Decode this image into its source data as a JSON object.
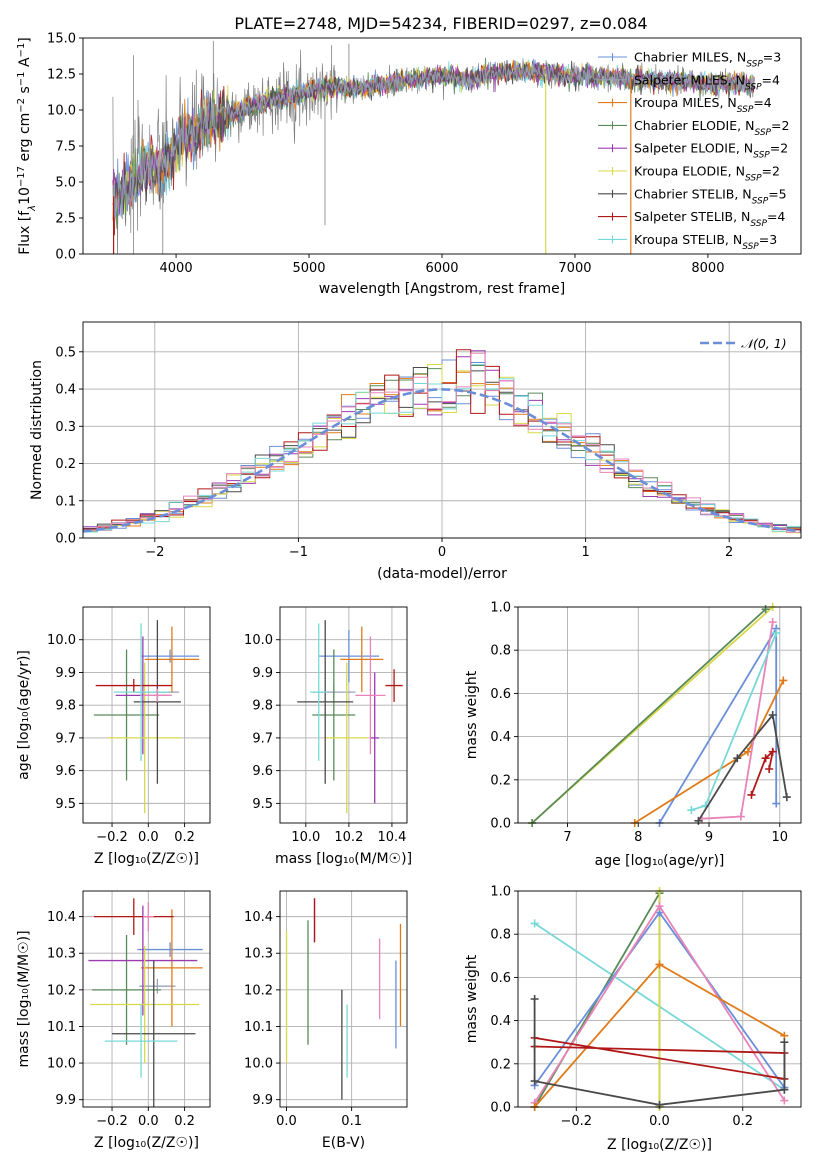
{
  "figure_title": "PLATE=2748, MJD=54234, FIBERID=0297, z=0.084",
  "colors": {
    "Chabrier MILES": "#6a8fd8",
    "Salpeter MILES": "#9aa3b8",
    "Kroupa MILES": "#e07b1a",
    "Chabrier ELODIE": "#5a8a5a",
    "Salpeter ELODIE": "#9b3bb0",
    "Kroupa ELODIE": "#d8d84a",
    "Chabrier STELIB": "#4a4a4a",
    "Salpeter STELIB": "#b01818",
    "Kroupa STELIB": "#78d8d8",
    "normal_curve": "#6a8fd8",
    "pink": "#e884b8",
    "data_gray": "#808080"
  },
  "chart_data": [
    {
      "id": "spectrum",
      "type": "line",
      "title": "PLATE=2748, MJD=54234, FIBERID=0297, z=0.084",
      "xlabel": "wavelength [Angstrom, rest frame]",
      "ylabel_parts": [
        "Flux [f",
        "λ",
        "10",
        "−17",
        " erg cm",
        "−2",
        " s",
        "−1",
        " A",
        "−1",
        "]"
      ],
      "xlim": [
        3300,
        8700
      ],
      "ylim": [
        0,
        15
      ],
      "xticks": [
        4000,
        5000,
        6000,
        7000,
        8000
      ],
      "xtick_labels": [
        "4000",
        "5000",
        "6000",
        "7000",
        "8000"
      ],
      "yticks": [
        0,
        2.5,
        5,
        7.5,
        10,
        12.5,
        15
      ],
      "ytick_labels": [
        "0.0",
        "2.5",
        "5.0",
        "7.5",
        "10.0",
        "12.5",
        "15.0"
      ],
      "legend_position": "upper right",
      "series": [
        {
          "name": "Chabrier MILES, N",
          "sub": "SSP",
          "suffix": "=3"
        },
        {
          "name": "Salpeter MILES, N",
          "sub": "SSP",
          "suffix": "=4"
        },
        {
          "name": "Kroupa MILES, N",
          "sub": "SSP",
          "suffix": "=4"
        },
        {
          "name": "Chabrier ELODIE, N",
          "sub": "SSP",
          "suffix": "=2"
        },
        {
          "name": "Salpeter ELODIE, N",
          "sub": "SSP",
          "suffix": "=2"
        },
        {
          "name": "Kroupa ELODIE, N",
          "sub": "SSP",
          "suffix": "=2"
        },
        {
          "name": "Chabrier STELIB, N",
          "sub": "SSP",
          "suffix": "=5"
        },
        {
          "name": "Salpeter STELIB, N",
          "sub": "SSP",
          "suffix": "=4"
        },
        {
          "name": "Kroupa STELIB, N",
          "sub": "SSP",
          "suffix": "=3"
        }
      ],
      "continuum": {
        "x": [
          3520,
          3650,
          3800,
          3900,
          4000,
          4100,
          4300,
          4500,
          4700,
          5000,
          5200,
          5400,
          5600,
          5800,
          6000,
          6200,
          6400,
          6600,
          6800,
          7000,
          7200,
          7400,
          7600,
          7800,
          8000,
          8200,
          8350
        ],
        "y": [
          3.8,
          4.8,
          6.2,
          6.0,
          7.6,
          8.3,
          9.4,
          10.0,
          10.7,
          11.3,
          11.6,
          11.5,
          11.8,
          12.1,
          12.4,
          12.1,
          12.6,
          12.7,
          12.5,
          12.4,
          12.3,
          12.1,
          12.1,
          12.0,
          11.8,
          11.9,
          11.7
        ]
      }
    },
    {
      "id": "residuals",
      "type": "histogram",
      "xlabel": "(data-model)/error",
      "ylabel": "Normed distribution",
      "xlim": [
        -2.5,
        2.5
      ],
      "ylim": [
        0,
        0.58
      ],
      "xticks": [
        -2,
        -1,
        0,
        1,
        2
      ],
      "xtick_labels": [
        "−2",
        "−1",
        "0",
        "1",
        "2"
      ],
      "yticks": [
        0,
        0.1,
        0.2,
        0.3,
        0.4,
        0.5
      ],
      "ytick_labels": [
        "0.0",
        "0.1",
        "0.2",
        "0.3",
        "0.4",
        "0.5"
      ],
      "bins": [
        -2.5,
        2.5,
        50
      ],
      "legend": {
        "label": "𝒩(0, 1)",
        "position": "upper right"
      },
      "normal_curve": {
        "mean": 0,
        "std": 1
      }
    },
    {
      "id": "age_vs_Z",
      "type": "errorbar",
      "xlabel": "Z [log₁₀(Z/Z☉)]",
      "ylabel": "age  [log₁₀(age/yr)]",
      "xlim": [
        -0.36,
        0.34
      ],
      "ylim": [
        9.44,
        10.1
      ],
      "xticks": [
        -0.2,
        0.0,
        0.2
      ],
      "xtick_labels": [
        "−0.2",
        "0.0",
        "0.2"
      ],
      "yticks": [
        9.5,
        9.6,
        9.7,
        9.8,
        9.9,
        10.0
      ],
      "ytick_labels": [
        "9.5",
        "9.6",
        "9.7",
        "9.8",
        "9.9",
        "10.0"
      ],
      "points": [
        {
          "c": "Chabrier MILES",
          "x": 0.12,
          "xe": 0.16,
          "y": 9.95,
          "ye": 0.02
        },
        {
          "c": "Salpeter MILES",
          "x": 0.05,
          "xe": 0.12,
          "y": 9.84,
          "ye": 0.02
        },
        {
          "c": "Kroupa MILES",
          "x": 0.13,
          "xe": 0.15,
          "y": 9.94,
          "ye": 0.1
        },
        {
          "c": "Chabrier ELODIE",
          "x": -0.12,
          "xe": 0.18,
          "y": 9.77,
          "ye": 0.2
        },
        {
          "c": "Salpeter ELODIE",
          "x": -0.03,
          "xe": 0.15,
          "y": 9.83,
          "ye": 0.18
        },
        {
          "c": "Kroupa ELODIE",
          "x": -0.02,
          "xe": 0.2,
          "y": 9.7,
          "ye": 0.23
        },
        {
          "c": "Chabrier STELIB",
          "x": 0.05,
          "xe": 0.13,
          "y": 9.81,
          "ye": 0.25
        },
        {
          "c": "Salpeter STELIB",
          "x": -0.08,
          "xe": 0.21,
          "y": 9.86,
          "ye": 0.02
        },
        {
          "c": "Kroupa STELIB",
          "x": -0.04,
          "xe": 0.15,
          "y": 9.84,
          "ye": 0.21
        },
        {
          "c": "pink",
          "x": 0.05,
          "xe": 0.08,
          "y": 9.83,
          "ye": 0.02
        }
      ]
    },
    {
      "id": "age_vs_mass",
      "type": "errorbar",
      "xlabel": "mass [log₁₀(M/M☉)]",
      "xlim": [
        9.88,
        10.47
      ],
      "ylim": [
        9.44,
        10.1
      ],
      "xticks": [
        10.0,
        10.2,
        10.4
      ],
      "xtick_labels": [
        "10.0",
        "10.2",
        "10.4"
      ],
      "yticks": [
        9.5,
        9.6,
        9.7,
        9.8,
        9.9,
        10.0
      ],
      "ytick_labels": [
        "9.5",
        "9.6",
        "9.7",
        "9.8",
        "9.9",
        "10.0"
      ],
      "points": [
        {
          "c": "Chabrier MILES",
          "x": 10.2,
          "xe": 0.14,
          "y": 9.95,
          "ye": 0.08
        },
        {
          "c": "Salpeter MILES",
          "x": 10.13,
          "xe": 0.1,
          "y": 9.84,
          "ye": 0.02
        },
        {
          "c": "Kroupa MILES",
          "x": 10.26,
          "xe": 0.1,
          "y": 9.94,
          "ye": 0.1
        },
        {
          "c": "Chabrier ELODIE",
          "x": 10.13,
          "xe": 0.1,
          "y": 9.77,
          "ye": 0.2
        },
        {
          "c": "Salpeter ELODIE",
          "x": 10.32,
          "xe": 0.02,
          "y": 9.7,
          "ye": 0.2
        },
        {
          "c": "Kroupa ELODIE",
          "x": 10.19,
          "xe": 0.1,
          "y": 9.7,
          "ye": 0.23
        },
        {
          "c": "Chabrier STELIB",
          "x": 10.09,
          "xe": 0.13,
          "y": 9.81,
          "ye": 0.25
        },
        {
          "c": "Salpeter STELIB",
          "x": 10.41,
          "xe": 0.04,
          "y": 9.86,
          "ye": 0.05
        },
        {
          "c": "Kroupa STELIB",
          "x": 10.06,
          "xe": 0.04,
          "y": 9.84,
          "ye": 0.21
        },
        {
          "c": "pink",
          "x": 10.3,
          "xe": 0.07,
          "y": 9.83,
          "ye": 0.18
        }
      ]
    },
    {
      "id": "mass_weight_vs_age",
      "type": "line",
      "xlabel": "age  [log₁₀(age/yr)]",
      "ylabel": "mass weight",
      "xlim": [
        6.3,
        10.3
      ],
      "ylim": [
        0,
        1
      ],
      "xticks": [
        7,
        8,
        9,
        10
      ],
      "xtick_labels": [
        "7",
        "8",
        "9",
        "10"
      ],
      "yticks": [
        0,
        0.2,
        0.4,
        0.6,
        0.8,
        1.0
      ],
      "ytick_labels": [
        "0.0",
        "0.2",
        "0.4",
        "0.6",
        "0.8",
        "1.0"
      ],
      "series": [
        {
          "c": "Kroupa ELODIE",
          "x": [
            6.5,
            9.9
          ],
          "y": [
            0.0,
            1.0
          ]
        },
        {
          "c": "Chabrier ELODIE",
          "x": [
            6.5,
            9.8
          ],
          "y": [
            0.0,
            0.99
          ]
        },
        {
          "c": "Chabrier MILES",
          "x": [
            8.3,
            9.95,
            9.95
          ],
          "y": [
            0.0,
            0.9,
            0.09
          ]
        },
        {
          "c": "Kroupa MILES",
          "x": [
            7.95,
            9.55,
            10.05
          ],
          "y": [
            0.0,
            0.33,
            0.66
          ]
        },
        {
          "c": "pink",
          "x": [
            8.9,
            9.45,
            9.9
          ],
          "y": [
            0.02,
            0.03,
            0.93
          ]
        },
        {
          "c": "Kroupa STELIB",
          "x": [
            8.75,
            8.95,
            9.95
          ],
          "y": [
            0.06,
            0.08,
            0.88
          ]
        },
        {
          "c": "Chabrier STELIB",
          "x": [
            8.85,
            9.4,
            9.9,
            10.1
          ],
          "y": [
            0.01,
            0.3,
            0.5,
            0.12
          ]
        },
        {
          "c": "Salpeter STELIB",
          "x": [
            9.6,
            9.8,
            9.9,
            9.85
          ],
          "y": [
            0.13,
            0.3,
            0.33,
            0.25
          ]
        }
      ]
    },
    {
      "id": "mass_vs_Z",
      "type": "errorbar",
      "xlabel": "Z [log₁₀(Z/Z☉)]",
      "ylabel": "mass [log₁₀(M/M☉)]",
      "xlim": [
        -0.36,
        0.34
      ],
      "ylim": [
        9.88,
        10.47
      ],
      "xticks": [
        -0.2,
        0.0,
        0.2
      ],
      "xtick_labels": [
        "−0.2",
        "0.0",
        "0.2"
      ],
      "yticks": [
        9.9,
        10.0,
        10.1,
        10.2,
        10.3,
        10.4
      ],
      "ytick_labels": [
        "9.9",
        "10.0",
        "10.1",
        "10.2",
        "10.3",
        "10.4"
      ],
      "points": [
        {
          "c": "Chabrier MILES",
          "x": 0.12,
          "xe": 0.18,
          "y": 10.31,
          "ye": 0.02
        },
        {
          "c": "Salpeter MILES",
          "x": 0.05,
          "xe": 0.1,
          "y": 10.21,
          "ye": 0.02
        },
        {
          "c": "Kroupa MILES",
          "x": 0.13,
          "xe": 0.17,
          "y": 10.26,
          "ye": 0.16
        },
        {
          "c": "Chabrier ELODIE",
          "x": -0.12,
          "xe": 0.19,
          "y": 10.2,
          "ye": 0.15
        },
        {
          "c": "Salpeter ELODIE",
          "x": -0.03,
          "xe": 0.3,
          "y": 10.28,
          "ye": 0.15
        },
        {
          "c": "Kroupa ELODIE",
          "x": -0.02,
          "xe": 0.3,
          "y": 10.16,
          "ye": 0.16
        },
        {
          "c": "Chabrier STELIB",
          "x": 0.03,
          "xe": 0.23,
          "y": 10.08,
          "ye": 0.2
        },
        {
          "c": "Salpeter STELIB",
          "x": -0.08,
          "xe": 0.22,
          "y": 10.4,
          "ye": 0.05
        },
        {
          "c": "Kroupa STELIB",
          "x": -0.04,
          "xe": 0.2,
          "y": 10.06,
          "ye": 0.1
        },
        {
          "c": "pink",
          "x": 0.0,
          "xe": 0.03,
          "y": 10.4,
          "ye": 0.04
        }
      ]
    },
    {
      "id": "mass_vs_ebv",
      "type": "errorbar",
      "xlabel": "E(B-V)",
      "xlim": [
        -0.01,
        0.185
      ],
      "ylim": [
        9.88,
        10.47
      ],
      "xticks": [
        0.0,
        0.1
      ],
      "xtick_labels": [
        "0.0",
        "0.1"
      ],
      "yticks": [
        9.9,
        10.0,
        10.1,
        10.2,
        10.3,
        10.4
      ],
      "ytick_labels": [
        "9.9",
        "10.0",
        "10.1",
        "10.2",
        "10.3",
        "10.4"
      ],
      "points": [
        {
          "c": "Chabrier MILES",
          "x": 0.168,
          "y": 10.16,
          "ye": 0.12
        },
        {
          "c": "Kroupa MILES",
          "x": 0.175,
          "y": 10.24,
          "ye": 0.14
        },
        {
          "c": "Chabrier ELODIE",
          "x": 0.033,
          "y": 10.22,
          "ye": 0.17
        },
        {
          "c": "Salpeter ELODIE",
          "x": 0.043,
          "y": 10.39,
          "ye": 0.06
        },
        {
          "c": "Kroupa ELODIE",
          "x": 0.0,
          "y": 10.18,
          "ye": 0.18
        },
        {
          "c": "Chabrier STELIB",
          "x": 0.085,
          "y": 10.05,
          "ye": 0.15
        },
        {
          "c": "Salpeter STELIB",
          "x": 0.043,
          "y": 10.39,
          "ye": 0.06
        },
        {
          "c": "Kroupa STELIB",
          "x": 0.093,
          "y": 10.06,
          "ye": 0.1
        },
        {
          "c": "pink",
          "x": 0.143,
          "y": 10.23,
          "ye": 0.11
        }
      ]
    },
    {
      "id": "mass_weight_vs_Z",
      "type": "line",
      "xlabel": "Z [log₁₀(Z/Z☉)]",
      "ylabel": "mass weight",
      "xlim": [
        -0.34,
        0.34
      ],
      "ylim": [
        0,
        1
      ],
      "xticks": [
        -0.2,
        0.0,
        0.2
      ],
      "xtick_labels": [
        "−0.2",
        "0.0",
        "0.2"
      ],
      "yticks": [
        0,
        0.2,
        0.4,
        0.6,
        0.8,
        1.0
      ],
      "ytick_labels": [
        "0.0",
        "0.2",
        "0.4",
        "0.6",
        "0.8",
        "1.0"
      ],
      "series": [
        {
          "c": "Kroupa STELIB",
          "x": [
            -0.3,
            0.3
          ],
          "y": [
            0.85,
            0.08
          ]
        },
        {
          "c": "Chabrier ELODIE",
          "x": [
            -0.3,
            0.0,
            0.0
          ],
          "y": [
            0.0,
            0.99,
            0.0
          ]
        },
        {
          "c": "Kroupa ELODIE",
          "x": [
            0.0,
            0.0
          ],
          "y": [
            0.0,
            1.0
          ]
        },
        {
          "c": "Chabrier MILES",
          "x": [
            -0.3,
            0.0,
            0.3
          ],
          "y": [
            0.1,
            0.9,
            0.09
          ]
        },
        {
          "c": "pink",
          "x": [
            -0.3,
            0.0,
            0.3
          ],
          "y": [
            0.02,
            0.93,
            0.03
          ]
        },
        {
          "c": "Kroupa MILES",
          "x": [
            -0.3,
            0.0,
            0.3
          ],
          "y": [
            0.0,
            0.66,
            0.33
          ]
        },
        {
          "c": "Salpeter STELIB",
          "x": [
            -0.3,
            0.3,
            0.3,
            -0.3
          ],
          "y": [
            0.32,
            0.13,
            0.25,
            0.28
          ]
        },
        {
          "c": "Chabrier STELIB",
          "x": [
            -0.3,
            -0.3,
            0.0,
            0.3,
            0.3
          ],
          "y": [
            0.5,
            0.12,
            0.01,
            0.08,
            0.3
          ]
        }
      ]
    }
  ]
}
